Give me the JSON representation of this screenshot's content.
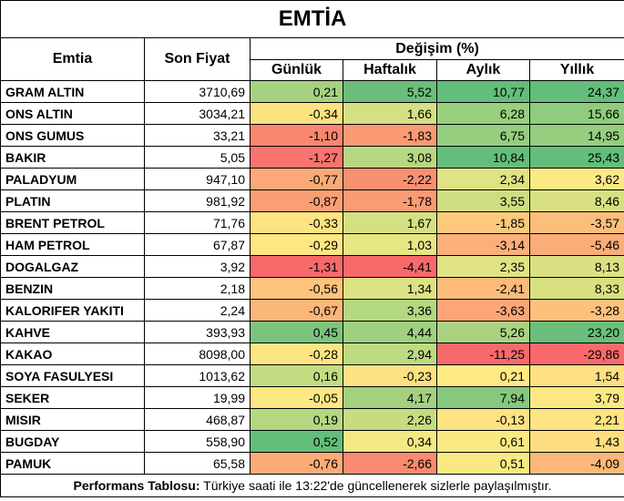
{
  "title": "EMTİA",
  "headers": {
    "emtia": "Emtia",
    "son_fiyat": "Son Fiyat",
    "degisim": "Değişim (%)",
    "gunluk": "Günlük",
    "haftalik": "Haftalık",
    "aylik": "Aylık",
    "yillik": "Yıllık"
  },
  "rows": [
    {
      "name": "GRAM ALTIN",
      "price": "3710,69",
      "cells": [
        {
          "v": "0,21",
          "c": "#a6d280"
        },
        {
          "v": "5,52",
          "c": "#6bbf7b"
        },
        {
          "v": "10,77",
          "c": "#63be7b"
        },
        {
          "v": "24,37",
          "c": "#63be7b"
        }
      ]
    },
    {
      "name": "ONS ALTIN",
      "price": "3034,21",
      "cells": [
        {
          "v": "-0,34",
          "c": "#fde282"
        },
        {
          "v": "1,66",
          "c": "#d5e083"
        },
        {
          "v": "6,28",
          "c": "#9acf7f"
        },
        {
          "v": "15,66",
          "c": "#90cc7e"
        }
      ]
    },
    {
      "name": "ONS GUMUS",
      "price": "33,21",
      "cells": [
        {
          "v": "-1,10",
          "c": "#f98770"
        },
        {
          "v": "-1,83",
          "c": "#f99a74"
        },
        {
          "v": "6,75",
          "c": "#95ce7f"
        },
        {
          "v": "14,95",
          "c": "#95ce7f"
        }
      ]
    },
    {
      "name": "BAKIR",
      "price": "5,05",
      "cells": [
        {
          "v": "-1,27",
          "c": "#f8746d"
        },
        {
          "v": "3,08",
          "c": "#b7d881"
        },
        {
          "v": "10,84",
          "c": "#63be7b"
        },
        {
          "v": "25,43",
          "c": "#63be7b"
        }
      ]
    },
    {
      "name": "PALADYUM",
      "price": "947,10",
      "cells": [
        {
          "v": "-0,77",
          "c": "#fbaa77"
        },
        {
          "v": "-2,22",
          "c": "#f98f71"
        },
        {
          "v": "2,34",
          "c": "#dfe383"
        },
        {
          "v": "3,62",
          "c": "#fbe983"
        }
      ]
    },
    {
      "name": "PLATIN",
      "price": "981,92",
      "cells": [
        {
          "v": "-0,87",
          "c": "#fa9f75"
        },
        {
          "v": "-1,78",
          "c": "#f99b74"
        },
        {
          "v": "3,55",
          "c": "#cfdd82"
        },
        {
          "v": "8,46",
          "c": "#d8e082"
        }
      ]
    },
    {
      "name": "BRENT PETROL",
      "price": "71,76",
      "cells": [
        {
          "v": "-0,33",
          "c": "#fde382"
        },
        {
          "v": "1,67",
          "c": "#d5e083"
        },
        {
          "v": "-1,85",
          "c": "#fdc97d"
        },
        {
          "v": "-3,57",
          "c": "#fcbf7b"
        }
      ]
    },
    {
      "name": "HAM PETROL",
      "price": "67,87",
      "cells": [
        {
          "v": "-0,29",
          "c": "#fee683"
        },
        {
          "v": "1,03",
          "c": "#e6e683"
        },
        {
          "v": "-3,14",
          "c": "#fcaf78"
        },
        {
          "v": "-5,46",
          "c": "#fbad78"
        }
      ]
    },
    {
      "name": "DOGALGAZ",
      "price": "3,92",
      "cells": [
        {
          "v": "-1,31",
          "c": "#f8696b"
        },
        {
          "v": "-4,41",
          "c": "#f8696b"
        },
        {
          "v": "2,35",
          "c": "#e0e383"
        },
        {
          "v": "8,13",
          "c": "#dbe183"
        }
      ]
    },
    {
      "name": "BENZIN",
      "price": "2,18",
      "cells": [
        {
          "v": "-0,56",
          "c": "#fcc47c"
        },
        {
          "v": "1,34",
          "c": "#dde283"
        },
        {
          "v": "-2,41",
          "c": "#fcbb7a"
        },
        {
          "v": "8,33",
          "c": "#d9e082"
        }
      ]
    },
    {
      "name": "KALORIFER YAKITI",
      "price": "2,24",
      "cells": [
        {
          "v": "-0,67",
          "c": "#fbb679"
        },
        {
          "v": "3,36",
          "c": "#b4d781"
        },
        {
          "v": "-3,63",
          "c": "#fca677"
        },
        {
          "v": "-3,28",
          "c": "#fcc17c"
        }
      ]
    },
    {
      "name": "KAHVE",
      "price": "393,93",
      "cells": [
        {
          "v": "0,45",
          "c": "#7cc47d"
        },
        {
          "v": "4,44",
          "c": "#9fd180"
        },
        {
          "v": "5,26",
          "c": "#a9d380"
        },
        {
          "v": "23,20",
          "c": "#69bf7b"
        }
      ]
    },
    {
      "name": "KAKAO",
      "price": "8098,00",
      "cells": [
        {
          "v": "-0,28",
          "c": "#fee583"
        },
        {
          "v": "2,94",
          "c": "#bcda81"
        },
        {
          "v": "-11,25",
          "c": "#f8696b"
        },
        {
          "v": "-29,86",
          "c": "#f8696b"
        }
      ]
    },
    {
      "name": "SOYA FASULYESI",
      "price": "1013,62",
      "cells": [
        {
          "v": "0,16",
          "c": "#c4dc81"
        },
        {
          "v": "-0,23",
          "c": "#fde182"
        },
        {
          "v": "0,21",
          "c": "#fee983"
        },
        {
          "v": "1,54",
          "c": "#fedf81"
        }
      ]
    },
    {
      "name": "SEKER",
      "price": "19,99",
      "cells": [
        {
          "v": "-0,05",
          "c": "#fee883"
        },
        {
          "v": "4,17",
          "c": "#a3d180"
        },
        {
          "v": "7,94",
          "c": "#86c87d"
        },
        {
          "v": "3,79",
          "c": "#fae983"
        }
      ]
    },
    {
      "name": "MISIR",
      "price": "468,87",
      "cells": [
        {
          "v": "0,19",
          "c": "#b3d881"
        },
        {
          "v": "2,26",
          "c": "#c6dc81"
        },
        {
          "v": "-0,13",
          "c": "#fee383"
        },
        {
          "v": "2,21",
          "c": "#fee482"
        }
      ]
    },
    {
      "name": "BUGDAY",
      "price": "558,90",
      "cells": [
        {
          "v": "0,52",
          "c": "#63be7b"
        },
        {
          "v": "0,34",
          "c": "#f4e883"
        },
        {
          "v": "0,61",
          "c": "#f9e983"
        },
        {
          "v": "1,43",
          "c": "#fede81"
        }
      ]
    },
    {
      "name": "PAMUK",
      "price": "65,58",
      "cells": [
        {
          "v": "-0,76",
          "c": "#fbab77"
        },
        {
          "v": "-2,66",
          "c": "#fa8a70"
        },
        {
          "v": "0,51",
          "c": "#f8e983"
        },
        {
          "v": "-4,09",
          "c": "#fcb87a"
        }
      ]
    }
  ],
  "footer": {
    "bold": "Performans Tablosu:",
    "text": " Türkiye saati ile 13:22'de güncellenerek sizlerle paylaşılmıştır."
  }
}
